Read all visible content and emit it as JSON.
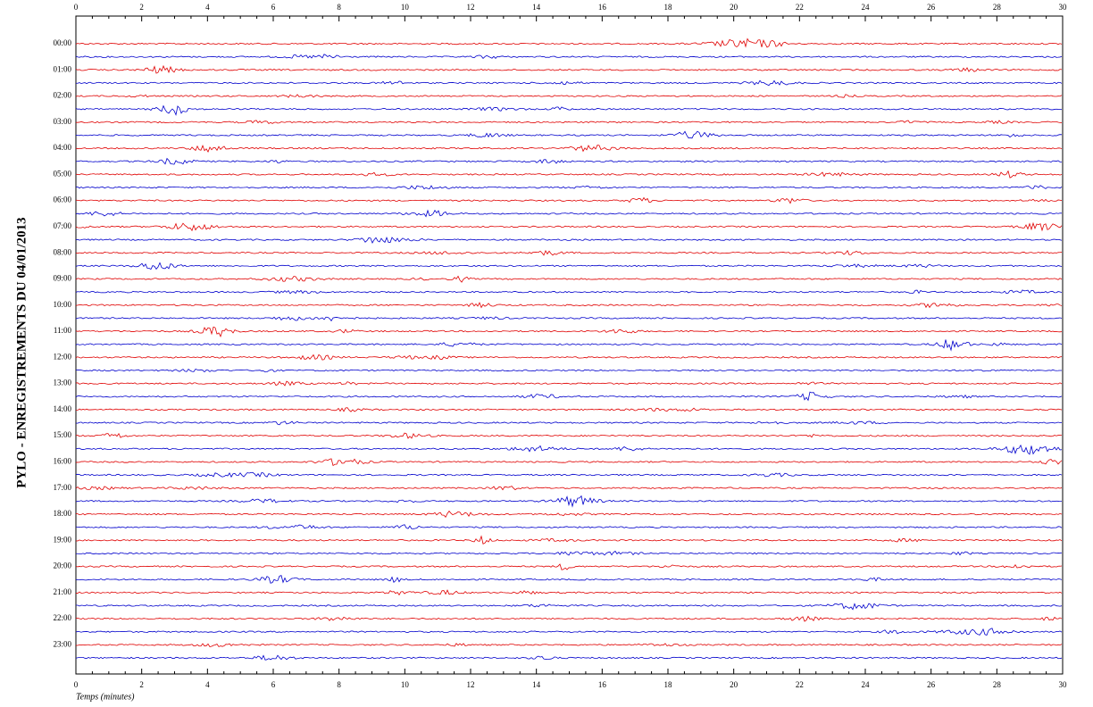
{
  "chart_data": {
    "type": "helicorder",
    "title": "PYLO - ENREGISTREMENTS DU 04/01/2013",
    "x_label": "Temps (minutes)",
    "xlim": [
      0,
      30
    ],
    "xticks": [
      0,
      2,
      4,
      6,
      8,
      10,
      12,
      14,
      16,
      18,
      20,
      22,
      24,
      26,
      28,
      30
    ],
    "categories": [
      "00:00",
      null,
      "01:00",
      null,
      "02:00",
      null,
      "03:00",
      null,
      "04:00",
      null,
      "05:00",
      null,
      "06:00",
      null,
      "07:00",
      null,
      "08:00",
      null,
      "09:00",
      null,
      "10:00",
      null,
      "11:00",
      null,
      "12:00",
      null,
      "13:00",
      null,
      "14:00",
      null,
      "15:00",
      null,
      "16:00",
      null,
      "17:00",
      null,
      "18:00",
      null,
      "19:00",
      null,
      "20:00",
      null,
      "21:00",
      null,
      "22:00",
      null,
      "23:00",
      null
    ],
    "trace_colors": [
      "#e00000",
      "#0000cc"
    ]
  }
}
